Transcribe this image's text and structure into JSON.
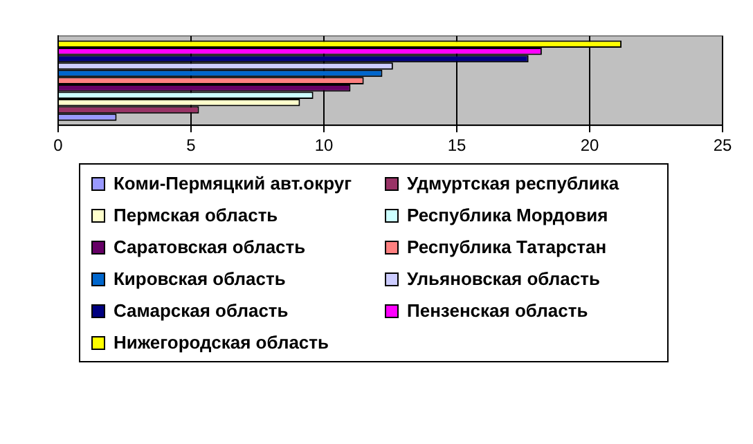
{
  "chart_data": {
    "type": "bar",
    "orientation": "horizontal",
    "categories": [
      null
    ],
    "series": [
      {
        "name": "Коми-Пермяцкий авт.округ",
        "color": "#9999ff",
        "values": [
          2.2
        ]
      },
      {
        "name": "Удмуртская республика",
        "color": "#993366",
        "values": [
          5.3
        ]
      },
      {
        "name": "Пермская область",
        "color": "#ffffcc",
        "values": [
          9.1
        ]
      },
      {
        "name": "Республика Мордовия",
        "color": "#ccffff",
        "values": [
          9.6
        ]
      },
      {
        "name": "Саратовская область",
        "color": "#660066",
        "values": [
          11.0
        ]
      },
      {
        "name": "Республика Татарстан",
        "color": "#ff8080",
        "values": [
          11.5
        ]
      },
      {
        "name": "Кировская область",
        "color": "#0066cc",
        "values": [
          12.2
        ]
      },
      {
        "name": "Ульяновская область",
        "color": "#ccccff",
        "values": [
          12.6
        ]
      },
      {
        "name": "Самарская область",
        "color": "#000080",
        "values": [
          17.7
        ]
      },
      {
        "name": "Пензенская область",
        "color": "#ff00ff",
        "values": [
          18.2
        ]
      },
      {
        "name": "Нижегородская область",
        "color": "#ffff00",
        "values": [
          21.2
        ]
      }
    ],
    "xlim": [
      0,
      25
    ],
    "xticks": [
      0,
      5,
      10,
      15,
      20,
      25
    ],
    "grid": "x",
    "legend": "bottom"
  }
}
